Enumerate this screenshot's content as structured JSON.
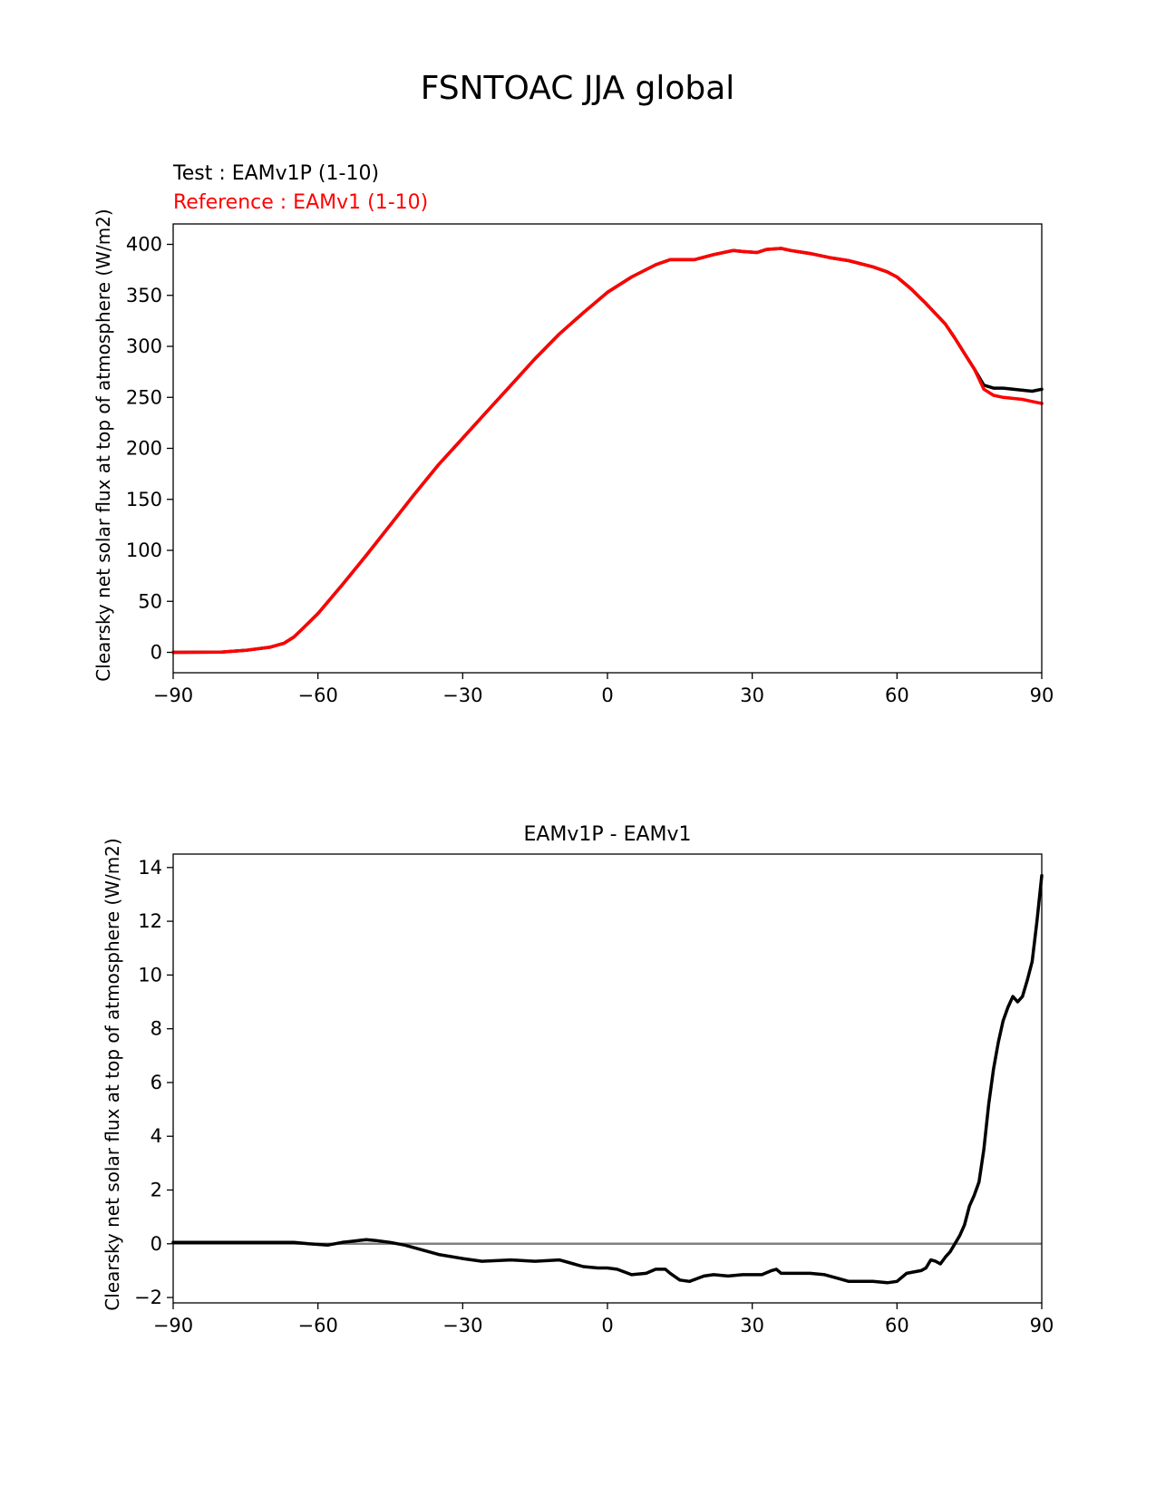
{
  "figure_title": "FSNTOAC JJA global",
  "chart_data": [
    {
      "type": "line",
      "test_label": "Test : EAMv1P (1-10)",
      "reference_label": "Reference : EAMv1 (1-10)",
      "ylabel": "Clearsky net solar flux at top of atmosphere (W/m2)",
      "xlabel": "",
      "xlim": [
        -90,
        90
      ],
      "ylim": [
        -20,
        420
      ],
      "xticks": [
        -90,
        -60,
        -30,
        0,
        30,
        60,
        90
      ],
      "xtick_labels": [
        "−90",
        "−60",
        "−30",
        "0",
        "30",
        "60",
        "90"
      ],
      "yticks": [
        0,
        50,
        100,
        150,
        200,
        250,
        300,
        350,
        400
      ],
      "ytick_labels": [
        "0",
        "50",
        "100",
        "150",
        "200",
        "250",
        "300",
        "350",
        "400"
      ],
      "colors": {
        "test": "#000000",
        "reference": "#ff0000"
      },
      "x": [
        -90,
        -80,
        -75,
        -70,
        -67,
        -65,
        -63,
        -60,
        -55,
        -50,
        -45,
        -40,
        -35,
        -30,
        -25,
        -20,
        -15,
        -10,
        -5,
        0,
        5,
        10,
        13,
        18,
        22,
        26,
        28,
        31,
        33,
        36,
        38,
        42,
        46,
        50,
        55,
        58,
        60,
        63,
        66,
        70,
        72,
        74,
        76,
        78,
        80,
        82,
        84,
        86,
        88,
        90
      ],
      "series": [
        {
          "name": "Test",
          "values": [
            0,
            0.3,
            2,
            5,
            9,
            15,
            24,
            38,
            66,
            95,
            125,
            155,
            184,
            210,
            236,
            262,
            288,
            312,
            333,
            353,
            368,
            380,
            385,
            385,
            390,
            394,
            393,
            392,
            395,
            396,
            394,
            391,
            387,
            384,
            378,
            373,
            368,
            356,
            342,
            322,
            308,
            293,
            278,
            262,
            259,
            259,
            258,
            257,
            256,
            258
          ]
        },
        {
          "name": "Reference",
          "values": [
            0,
            0.3,
            2,
            5,
            9,
            15,
            24,
            38,
            66,
            95,
            125,
            155,
            184,
            210,
            236,
            262,
            288,
            312,
            333,
            353,
            368,
            380,
            385,
            385,
            390,
            394,
            393,
            392,
            395,
            396,
            394,
            391,
            387,
            384,
            378,
            373,
            368,
            356,
            342,
            322,
            308,
            293,
            278,
            258,
            252,
            250,
            249,
            248,
            246,
            244
          ]
        }
      ]
    },
    {
      "type": "line",
      "title": "EAMv1P - EAMv1",
      "ylabel": "Clearsky net solar flux at top of atmosphere (W/m2)",
      "xlabel": "",
      "xlim": [
        -90,
        90
      ],
      "ylim": [
        -2.2,
        14.5
      ],
      "xticks": [
        -90,
        -60,
        -30,
        0,
        30,
        60,
        90
      ],
      "xtick_labels": [
        "−90",
        "−60",
        "−30",
        "0",
        "30",
        "60",
        "90"
      ],
      "yticks": [
        -2,
        0,
        2,
        4,
        6,
        8,
        10,
        12,
        14
      ],
      "ytick_labels": [
        "−2",
        "0",
        "2",
        "4",
        "6",
        "8",
        "10",
        "12",
        "14"
      ],
      "colors": {
        "diff": "#000000",
        "zero_line": "#808080"
      },
      "zero_line": 0,
      "x": [
        -90,
        -80,
        -70,
        -65,
        -62,
        -58,
        -55,
        -50,
        -48,
        -45,
        -42,
        -38,
        -35,
        -30,
        -26,
        -20,
        -15,
        -10,
        -8,
        -5,
        -2,
        0,
        2,
        5,
        8,
        10,
        12,
        13,
        15,
        17,
        20,
        22,
        25,
        28,
        32,
        34,
        35,
        36,
        38,
        40,
        42,
        45,
        48,
        50,
        52,
        55,
        58,
        60,
        62,
        65,
        66,
        67,
        68,
        69,
        70,
        71,
        72,
        73,
        74,
        75,
        76,
        77,
        78,
        79,
        80,
        81,
        82,
        83,
        84,
        85,
        86,
        87,
        88,
        89,
        90
      ],
      "series": [
        {
          "name": "",
          "values": [
            0.05,
            0.05,
            0.05,
            0.05,
            0.0,
            -0.05,
            0.05,
            0.15,
            0.12,
            0.05,
            -0.05,
            -0.25,
            -0.4,
            -0.55,
            -0.65,
            -0.6,
            -0.65,
            -0.6,
            -0.7,
            -0.85,
            -0.9,
            -0.9,
            -0.95,
            -1.15,
            -1.1,
            -0.95,
            -0.95,
            -1.1,
            -1.35,
            -1.4,
            -1.2,
            -1.15,
            -1.2,
            -1.15,
            -1.15,
            -1.0,
            -0.95,
            -1.1,
            -1.1,
            -1.1,
            -1.1,
            -1.15,
            -1.3,
            -1.4,
            -1.4,
            -1.4,
            -1.45,
            -1.4,
            -1.1,
            -1.0,
            -0.9,
            -0.6,
            -0.65,
            -0.75,
            -0.5,
            -0.3,
            0.0,
            0.3,
            0.7,
            1.4,
            1.8,
            2.3,
            3.5,
            5.2,
            6.5,
            7.5,
            8.3,
            8.8,
            9.2,
            9.0,
            9.2,
            9.8,
            10.5,
            12.0,
            13.7
          ]
        }
      ]
    }
  ]
}
